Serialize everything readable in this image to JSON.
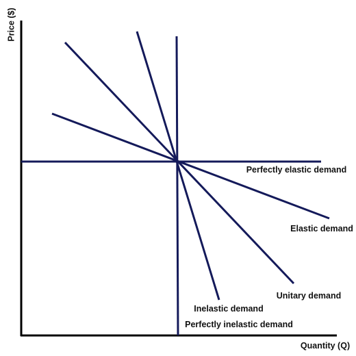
{
  "axes": {
    "y_label": "Price ($)",
    "x_label": "Quantity (Q)"
  },
  "curves": {
    "perfectly_elastic": "Perfectly elastic demand",
    "elastic": "Elastic demand",
    "unitary": "Unitary demand",
    "inelastic": "Inelastic demand",
    "perfectly_inelastic": "Perfectly inelastic demand"
  },
  "colors": {
    "line": "#141a5a",
    "axis": "#000000",
    "text": "#111111"
  }
}
